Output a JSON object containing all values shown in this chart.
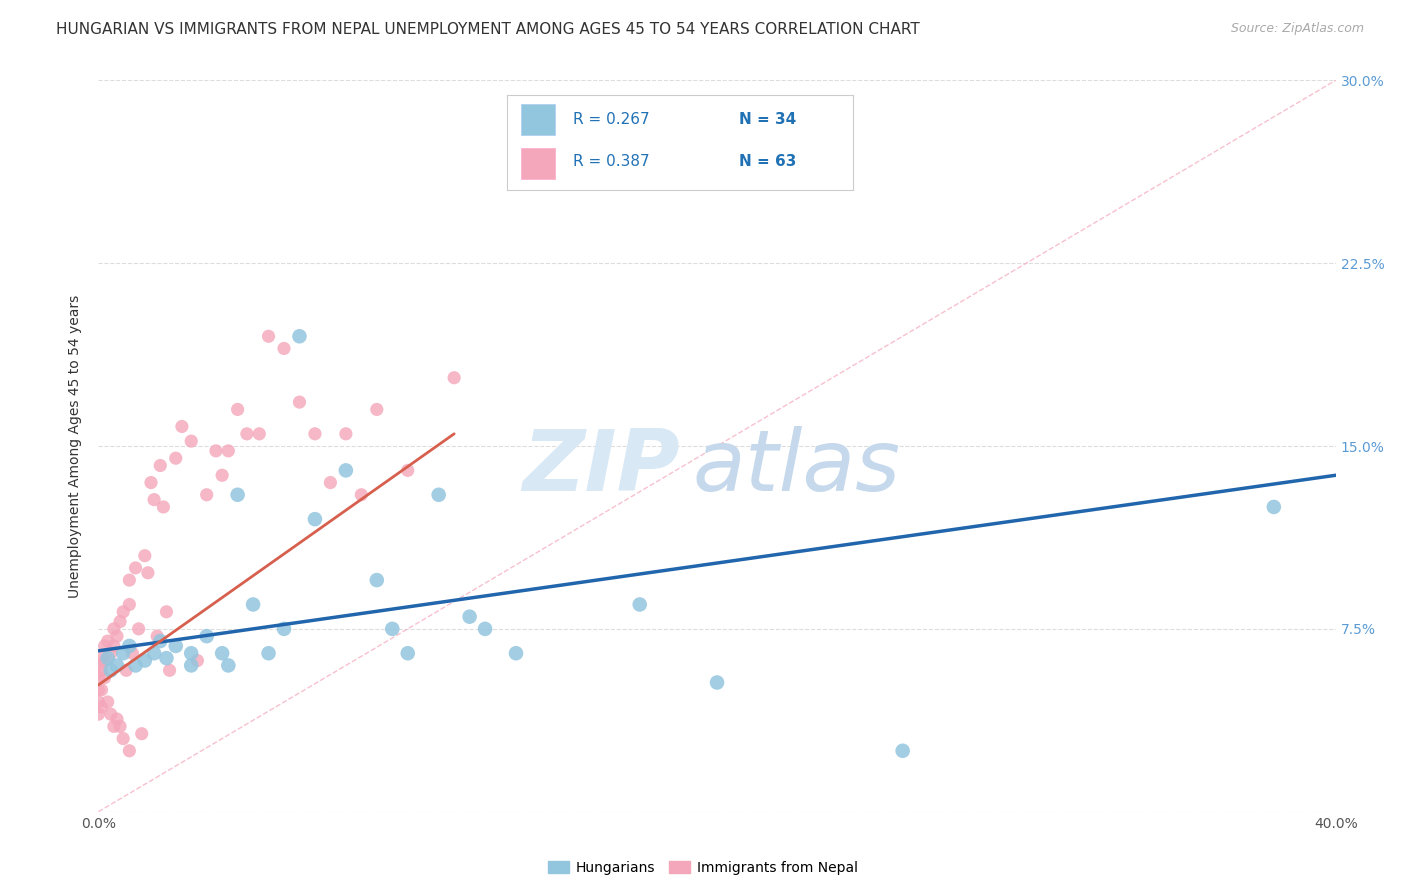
{
  "title": "HUNGARIAN VS IMMIGRANTS FROM NEPAL UNEMPLOYMENT AMONG AGES 45 TO 54 YEARS CORRELATION CHART",
  "source": "Source: ZipAtlas.com",
  "ylabel": "Unemployment Among Ages 45 to 54 years",
  "xlim": [
    0.0,
    0.4
  ],
  "ylim": [
    0.0,
    0.3
  ],
  "xticks": [
    0.0,
    0.1,
    0.2,
    0.3,
    0.4
  ],
  "xticklabels": [
    "0.0%",
    "",
    "",
    "",
    "40.0%"
  ],
  "yticks": [
    0.0,
    0.075,
    0.15,
    0.225,
    0.3
  ],
  "yticklabels_right": [
    "",
    "7.5%",
    "15.0%",
    "22.5%",
    "30.0%"
  ],
  "blue_color": "#92C5DE",
  "pink_color": "#F4A6BA",
  "blue_line_color": "#2166AC",
  "pink_line_color": "#D6604D",
  "ref_line_color": "#CCCCCC",
  "watermark_zip": "ZIP",
  "watermark_atlas": "atlas",
  "blue_x": [
    0.003,
    0.004,
    0.006,
    0.008,
    0.01,
    0.012,
    0.015,
    0.018,
    0.02,
    0.022,
    0.025,
    0.03,
    0.03,
    0.035,
    0.04,
    0.042,
    0.045,
    0.05,
    0.055,
    0.06,
    0.065,
    0.07,
    0.08,
    0.09,
    0.095,
    0.1,
    0.11,
    0.12,
    0.125,
    0.135,
    0.175,
    0.2,
    0.26,
    0.38
  ],
  "blue_y": [
    0.063,
    0.058,
    0.06,
    0.065,
    0.068,
    0.06,
    0.062,
    0.065,
    0.07,
    0.063,
    0.068,
    0.065,
    0.06,
    0.072,
    0.065,
    0.06,
    0.13,
    0.085,
    0.065,
    0.075,
    0.195,
    0.12,
    0.14,
    0.095,
    0.075,
    0.065,
    0.13,
    0.08,
    0.075,
    0.065,
    0.085,
    0.053,
    0.025,
    0.125
  ],
  "pink_x": [
    0.0,
    0.0,
    0.0,
    0.0,
    0.0,
    0.001,
    0.001,
    0.001,
    0.001,
    0.002,
    0.002,
    0.002,
    0.003,
    0.003,
    0.004,
    0.004,
    0.005,
    0.005,
    0.005,
    0.006,
    0.006,
    0.007,
    0.007,
    0.008,
    0.008,
    0.009,
    0.01,
    0.01,
    0.01,
    0.011,
    0.012,
    0.013,
    0.014,
    0.015,
    0.016,
    0.017,
    0.018,
    0.019,
    0.02,
    0.021,
    0.022,
    0.023,
    0.025,
    0.027,
    0.03,
    0.032,
    0.035,
    0.038,
    0.04,
    0.042,
    0.045,
    0.048,
    0.052,
    0.055,
    0.06,
    0.065,
    0.07,
    0.075,
    0.08,
    0.085,
    0.09,
    0.1,
    0.115
  ],
  "pink_y": [
    0.06,
    0.055,
    0.05,
    0.045,
    0.04,
    0.063,
    0.058,
    0.05,
    0.043,
    0.068,
    0.062,
    0.055,
    0.07,
    0.045,
    0.065,
    0.04,
    0.075,
    0.068,
    0.035,
    0.072,
    0.038,
    0.078,
    0.035,
    0.082,
    0.03,
    0.058,
    0.095,
    0.085,
    0.025,
    0.065,
    0.1,
    0.075,
    0.032,
    0.105,
    0.098,
    0.135,
    0.128,
    0.072,
    0.142,
    0.125,
    0.082,
    0.058,
    0.145,
    0.158,
    0.152,
    0.062,
    0.13,
    0.148,
    0.138,
    0.148,
    0.165,
    0.155,
    0.155,
    0.195,
    0.19,
    0.168,
    0.155,
    0.135,
    0.155,
    0.13,
    0.165,
    0.14,
    0.178
  ],
  "blue_trend_x": [
    0.0,
    0.4
  ],
  "blue_trend_y": [
    0.066,
    0.138
  ],
  "pink_trend_x": [
    0.0,
    0.115
  ],
  "pink_trend_y": [
    0.052,
    0.155
  ],
  "ref_line_x": [
    0.0,
    0.4
  ],
  "ref_line_y": [
    0.0,
    0.3
  ],
  "grid_color": "#DDDDDD",
  "background_color": "#FFFFFF",
  "title_fontsize": 11,
  "axis_label_fontsize": 10,
  "tick_fontsize": 10,
  "legend_r1": "R = 0.267",
  "legend_n1": "N = 34",
  "legend_r2": "R = 0.387",
  "legend_n2": "N = 63"
}
